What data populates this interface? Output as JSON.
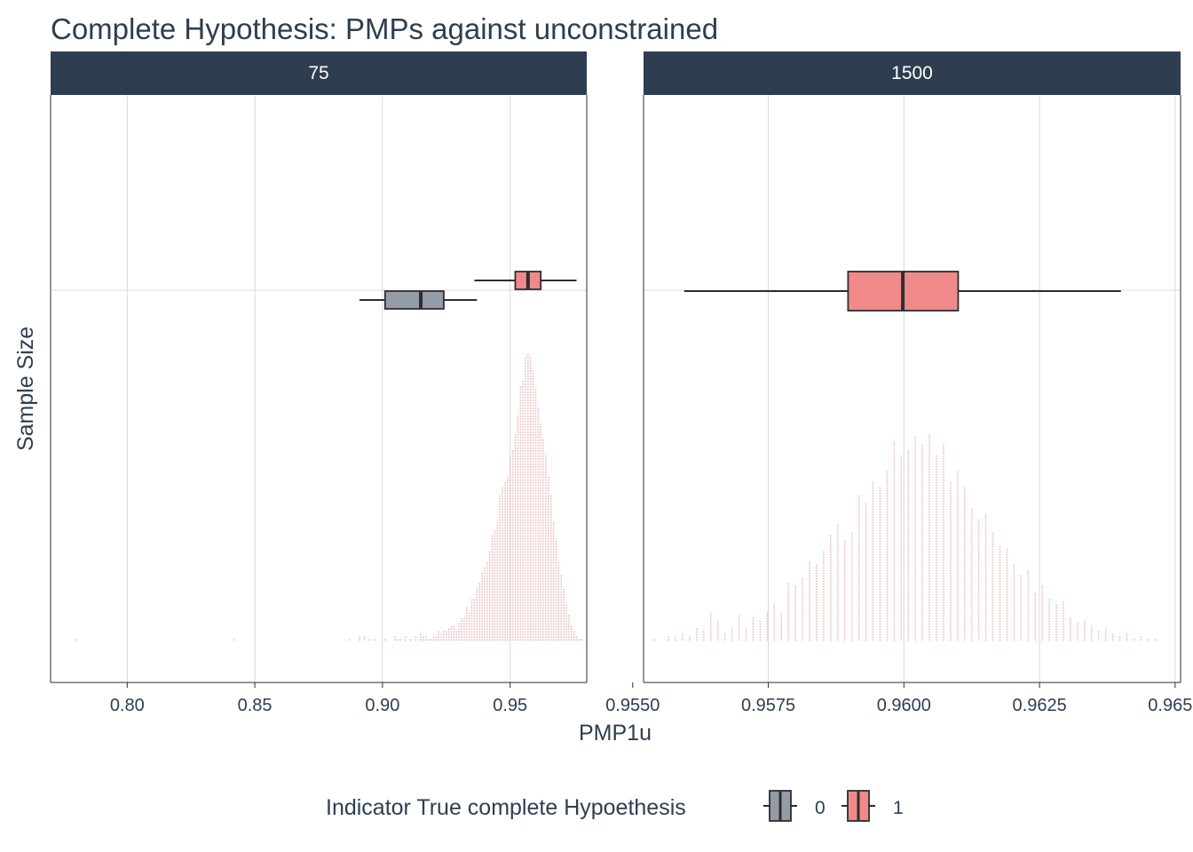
{
  "chart_data": {
    "type": "boxplot-with-dotplot",
    "title": "Complete Hypothesis: PMPs against unconstrained",
    "xlabel": "PMP1u",
    "ylabel": "Sample Size",
    "legend": {
      "title": "Indicator True complete Hypoethesis",
      "position": "bottom",
      "entries": [
        {
          "label": "0",
          "color": "#949ca6"
        },
        {
          "label": "1",
          "color": "#f08a8a"
        }
      ]
    },
    "colors": {
      "facet_strip": "#2e3e50",
      "text": "#2e3e50",
      "grid": "#d9d9d9",
      "dots": "#e8b4b4",
      "box_stroke": "#2e2e2e"
    },
    "grid": true,
    "facets": [
      {
        "label": "75",
        "xlim": [
          0.77,
          0.98
        ],
        "xticks": [
          0.8,
          0.85,
          0.9,
          0.95
        ],
        "xtick_labels": [
          "0.80",
          "0.85",
          "0.90",
          "0.95"
        ],
        "boxes": [
          {
            "group": "0",
            "min": 0.891,
            "q1": 0.901,
            "median": 0.915,
            "q3": 0.924,
            "max": 0.937
          },
          {
            "group": "1",
            "min": 0.936,
            "q1": 0.952,
            "median": 0.957,
            "q3": 0.962,
            "max": 0.976
          }
        ],
        "dot_histogram": {
          "bins": [
            0.78,
            0.842,
            0.887,
            0.891,
            0.893,
            0.895,
            0.897,
            0.901,
            0.905,
            0.906,
            0.907,
            0.909,
            0.911,
            0.913,
            0.915,
            0.916,
            0.917,
            0.918,
            0.919,
            0.92,
            0.921,
            0.922,
            0.923,
            0.924,
            0.925,
            0.926,
            0.927,
            0.928,
            0.929,
            0.93,
            0.931,
            0.932,
            0.933,
            0.934,
            0.935,
            0.936,
            0.937,
            0.938,
            0.939,
            0.94,
            0.941,
            0.942,
            0.943,
            0.944,
            0.945,
            0.946,
            0.947,
            0.948,
            0.949,
            0.95,
            0.951,
            0.952,
            0.953,
            0.954,
            0.955,
            0.956,
            0.957,
            0.958,
            0.959,
            0.96,
            0.961,
            0.962,
            0.963,
            0.964,
            0.965,
            0.966,
            0.967,
            0.968,
            0.969,
            0.97,
            0.971,
            0.972,
            0.973,
            0.974,
            0.975,
            0.976,
            0.977,
            0.978
          ],
          "counts": [
            1,
            1,
            1,
            2,
            2,
            1,
            1,
            1,
            2,
            1,
            1,
            2,
            1,
            2,
            3,
            2,
            2,
            1,
            1,
            2,
            2,
            4,
            3,
            4,
            4,
            5,
            6,
            6,
            4,
            7,
            9,
            9,
            13,
            11,
            16,
            16,
            20,
            22,
            26,
            28,
            30,
            34,
            40,
            42,
            45,
            55,
            58,
            60,
            62,
            70,
            72,
            78,
            85,
            96,
            98,
            107,
            108,
            107,
            102,
            95,
            88,
            82,
            76,
            70,
            62,
            55,
            45,
            38,
            30,
            25,
            20,
            14,
            10,
            6,
            4,
            2,
            1,
            1
          ]
        }
      },
      {
        "label": "1500",
        "xlim": [
          0.9552,
          0.9651
        ],
        "xticks": [
          0.955,
          0.9575,
          0.96,
          0.9625,
          0.965
        ],
        "xtick_labels": [
          "0.9550",
          "0.9575",
          "0.9600",
          "0.9625",
          "0.9650"
        ],
        "boxes": [
          {
            "group": "1",
            "min": 0.95595,
            "q1": 0.95897,
            "median": 0.95998,
            "q3": 0.961,
            "max": 0.964
          }
        ],
        "dot_histogram": {
          "bins": [
            0.9554,
            0.95553,
            0.95566,
            0.95579,
            0.95592,
            0.95605,
            0.95618,
            0.95631,
            0.95644,
            0.95657,
            0.9567,
            0.95683,
            0.95696,
            0.95709,
            0.95722,
            0.95735,
            0.95748,
            0.95761,
            0.95774,
            0.95787,
            0.958,
            0.95813,
            0.95826,
            0.95839,
            0.95852,
            0.95865,
            0.95878,
            0.95891,
            0.95904,
            0.95917,
            0.9593,
            0.95943,
            0.95956,
            0.95969,
            0.95982,
            0.95995,
            0.96008,
            0.96021,
            0.96034,
            0.96047,
            0.9606,
            0.96073,
            0.96086,
            0.96099,
            0.96112,
            0.96125,
            0.96138,
            0.96151,
            0.96164,
            0.96177,
            0.9619,
            0.96203,
            0.96216,
            0.96229,
            0.96242,
            0.96255,
            0.96268,
            0.96281,
            0.96294,
            0.96307,
            0.9632,
            0.96333,
            0.96346,
            0.96359,
            0.96372,
            0.96385,
            0.96398,
            0.96411,
            0.96424,
            0.96437,
            0.9645,
            0.96463
          ],
          "counts": [
            1,
            0,
            2,
            2,
            3,
            2,
            5,
            4,
            11,
            8,
            3,
            5,
            10,
            5,
            9,
            8,
            11,
            14,
            11,
            22,
            21,
            24,
            30,
            29,
            34,
            40,
            44,
            38,
            41,
            55,
            52,
            60,
            58,
            64,
            75,
            70,
            72,
            77,
            74,
            78,
            70,
            74,
            60,
            64,
            58,
            50,
            46,
            48,
            41,
            36,
            35,
            29,
            25,
            27,
            18,
            21,
            16,
            14,
            15,
            9,
            7,
            8,
            6,
            4,
            5,
            3,
            2,
            3,
            1,
            2,
            1,
            1
          ]
        }
      }
    ]
  }
}
